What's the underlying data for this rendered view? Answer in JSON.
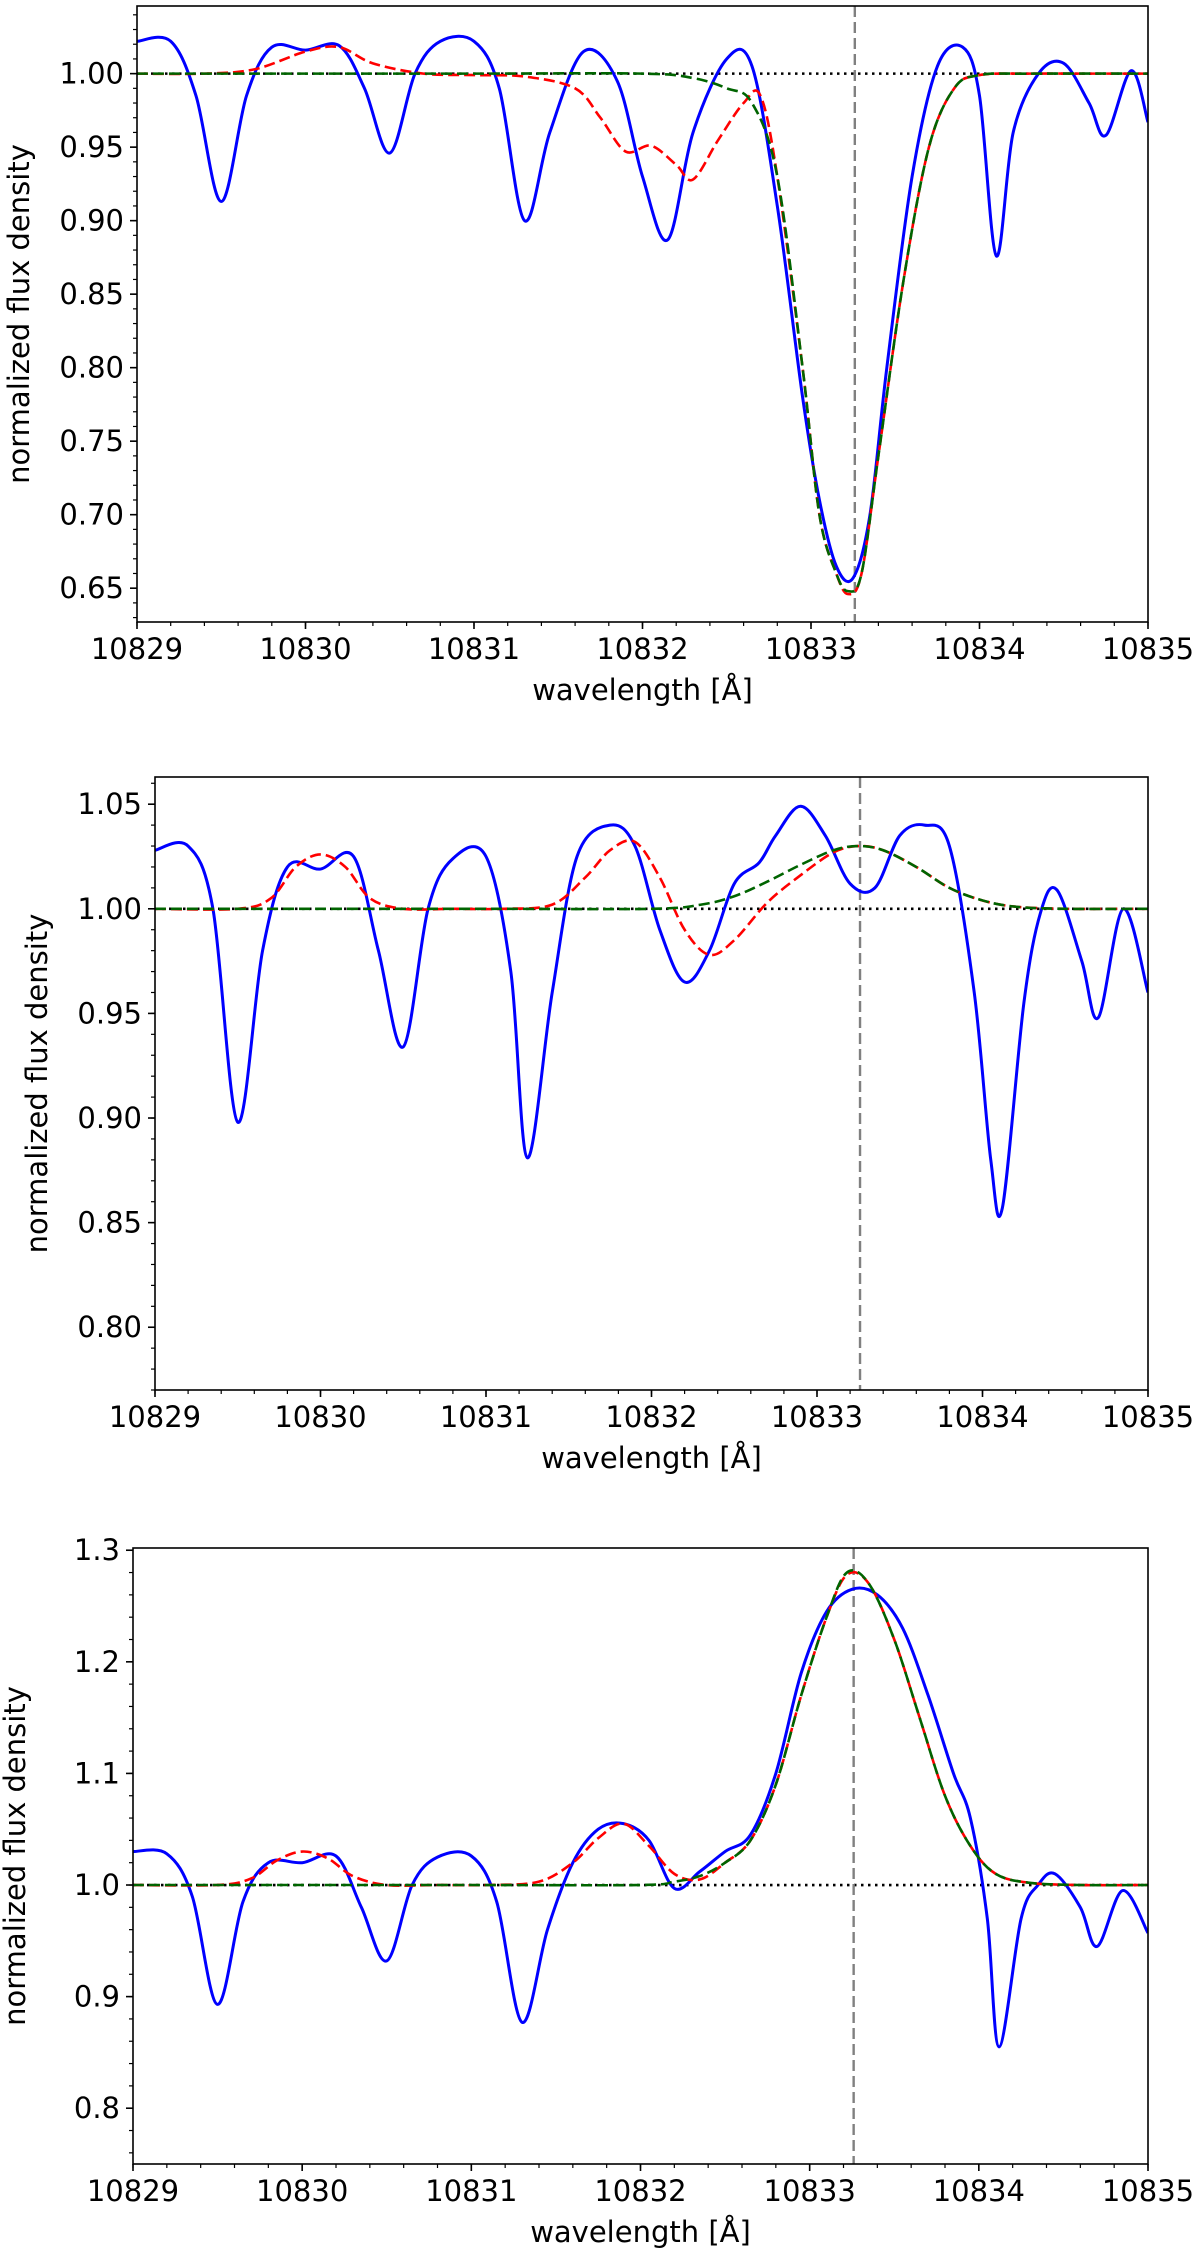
{
  "chart_data": [
    {
      "type": "line",
      "xlabel": "wavelength [Å]",
      "ylabel": "normalized flux density",
      "xlim": [
        10829,
        10835
      ],
      "ylim": [
        0.627,
        1.046
      ],
      "xticks": [
        10829,
        10830,
        10831,
        10832,
        10833,
        10834,
        10835
      ],
      "xtick_labels": [
        "10829",
        "10830",
        "10831",
        "10832",
        "10833",
        "10834",
        "10835"
      ],
      "yticks": [
        0.65,
        0.7,
        0.75,
        0.8,
        0.85,
        0.9,
        0.95,
        1.0
      ],
      "ytick_labels": [
        "0.65",
        "0.70",
        "0.75",
        "0.80",
        "0.85",
        "0.90",
        "0.95",
        "1.00"
      ],
      "grid": false,
      "reference_lines": {
        "horizontal_dotted_y": 1.0,
        "vertical_dashed_x": 10833.26
      },
      "series": [
        {
          "color": "#0000ff",
          "style": "solid",
          "x": [
            10829.0,
            10829.2,
            10829.35,
            10829.5,
            10829.65,
            10829.8,
            10830.0,
            10830.2,
            10830.35,
            10830.5,
            10830.65,
            10830.8,
            10831.0,
            10831.15,
            10831.3,
            10831.45,
            10831.65,
            10831.85,
            10832.0,
            10832.15,
            10832.3,
            10832.5,
            10832.65,
            10832.8,
            10832.95,
            10833.05,
            10833.15,
            10833.25,
            10833.35,
            10833.45,
            10833.6,
            10833.75,
            10833.9,
            10834.0,
            10834.1,
            10834.2,
            10834.35,
            10834.5,
            10834.65,
            10834.75,
            10834.9,
            10835.0
          ],
          "y": [
            1.022,
            1.022,
            0.985,
            0.913,
            0.985,
            1.018,
            1.016,
            1.019,
            0.99,
            0.946,
            1.0,
            1.022,
            1.022,
            0.99,
            0.9,
            0.96,
            1.015,
            0.995,
            0.93,
            0.887,
            0.96,
            1.01,
            1.005,
            0.91,
            0.78,
            0.71,
            0.665,
            0.657,
            0.7,
            0.8,
            0.93,
            1.005,
            1.018,
            0.985,
            0.876,
            0.96,
            1.0,
            1.007,
            0.98,
            0.958,
            1.002,
            0.967
          ]
        },
        {
          "color": "#ff0000",
          "style": "dashed",
          "x": [
            10829.0,
            10829.4,
            10829.7,
            10830.0,
            10830.2,
            10830.4,
            10830.7,
            10831.0,
            10831.3,
            10831.6,
            10831.75,
            10831.9,
            10832.05,
            10832.2,
            10832.3,
            10832.45,
            10832.6,
            10832.7,
            10832.8,
            10832.95,
            10833.05,
            10833.15,
            10833.22,
            10833.3,
            10833.4,
            10833.55,
            10833.7,
            10833.85,
            10834.0,
            10834.3,
            10834.6,
            10835.0
          ],
          "y": [
            1.0,
            1.0,
            1.003,
            1.015,
            1.018,
            1.007,
            1.0,
            0.999,
            0.998,
            0.99,
            0.97,
            0.947,
            0.951,
            0.938,
            0.928,
            0.955,
            0.98,
            0.985,
            0.93,
            0.8,
            0.7,
            0.66,
            0.646,
            0.66,
            0.74,
            0.86,
            0.95,
            0.99,
            0.999,
            1.0,
            1.0,
            1.0
          ]
        },
        {
          "color": "#006400",
          "style": "dashed",
          "x": [
            10829.0,
            10830.0,
            10831.0,
            10832.0,
            10832.3,
            10832.5,
            10832.65,
            10832.8,
            10832.95,
            10833.05,
            10833.15,
            10833.22,
            10833.3,
            10833.4,
            10833.55,
            10833.7,
            10833.85,
            10834.0,
            10834.3,
            10835.0
          ],
          "y": [
            1.0,
            1.0,
            1.0,
            1.0,
            0.997,
            0.99,
            0.98,
            0.93,
            0.8,
            0.7,
            0.66,
            0.648,
            0.66,
            0.74,
            0.86,
            0.95,
            0.99,
            0.999,
            1.0,
            1.0
          ]
        }
      ]
    },
    {
      "type": "line",
      "xlabel": "wavelength [Å]",
      "ylabel": "normalized flux density",
      "xlim": [
        10829,
        10835
      ],
      "ylim": [
        0.77,
        1.063
      ],
      "xticks": [
        10829,
        10830,
        10831,
        10832,
        10833,
        10834,
        10835
      ],
      "xtick_labels": [
        "10829",
        "10830",
        "10831",
        "10832",
        "10833",
        "10834",
        "10835"
      ],
      "yticks": [
        0.8,
        0.85,
        0.9,
        0.95,
        1.0,
        1.05
      ],
      "ytick_labels": [
        "0.80",
        "0.85",
        "0.90",
        "0.95",
        "1.00",
        "1.05"
      ],
      "grid": false,
      "reference_lines": {
        "horizontal_dotted_y": 1.0,
        "vertical_dashed_x": 10833.26
      },
      "series": [
        {
          "color": "#0000ff",
          "style": "solid",
          "x": [
            10829.0,
            10829.2,
            10829.35,
            10829.5,
            10829.65,
            10829.8,
            10830.0,
            10830.2,
            10830.35,
            10830.5,
            10830.65,
            10830.8,
            10831.0,
            10831.15,
            10831.25,
            10831.4,
            10831.55,
            10831.75,
            10831.9,
            10832.05,
            10832.2,
            10832.35,
            10832.5,
            10832.65,
            10832.75,
            10832.9,
            10833.05,
            10833.2,
            10833.35,
            10833.5,
            10833.65,
            10833.8,
            10833.95,
            10834.05,
            10834.12,
            10834.25,
            10834.35,
            10834.45,
            10834.6,
            10834.7,
            10834.85,
            10835.0
          ],
          "y": [
            1.028,
            1.03,
            1.0,
            0.898,
            0.98,
            1.02,
            1.019,
            1.025,
            0.98,
            0.934,
            1.0,
            1.024,
            1.025,
            0.97,
            0.881,
            0.96,
            1.025,
            1.04,
            1.03,
            0.99,
            0.965,
            0.98,
            1.012,
            1.022,
            1.035,
            1.049,
            1.035,
            1.012,
            1.01,
            1.035,
            1.04,
            1.03,
            0.96,
            0.88,
            0.857,
            0.955,
            0.998,
            1.009,
            0.975,
            0.948,
            1.0,
            0.96
          ]
        },
        {
          "color": "#ff0000",
          "style": "dashed",
          "x": [
            10829.0,
            10829.5,
            10829.7,
            10829.85,
            10830.0,
            10830.15,
            10830.3,
            10830.5,
            10830.8,
            10831.1,
            10831.4,
            10831.6,
            10831.75,
            10831.9,
            10832.05,
            10832.2,
            10832.35,
            10832.5,
            10832.7,
            10832.9,
            10833.1,
            10833.25,
            10833.4,
            10833.6,
            10833.8,
            10834.0,
            10834.2,
            10834.5,
            10834.8,
            10835.0
          ],
          "y": [
            1.0,
            1.0,
            1.005,
            1.02,
            1.026,
            1.02,
            1.005,
            1.0,
            1.0,
            1.0,
            1.002,
            1.015,
            1.028,
            1.032,
            1.015,
            0.99,
            0.978,
            0.985,
            1.003,
            1.016,
            1.027,
            1.03,
            1.028,
            1.02,
            1.01,
            1.004,
            1.001,
            1.0,
            1.0,
            1.0
          ]
        },
        {
          "color": "#006400",
          "style": "dashed",
          "x": [
            10829.0,
            10830.0,
            10831.0,
            10832.0,
            10832.3,
            10832.5,
            10832.7,
            10832.9,
            10833.1,
            10833.25,
            10833.4,
            10833.6,
            10833.8,
            10834.0,
            10834.2,
            10834.5,
            10835.0
          ],
          "y": [
            1.0,
            1.0,
            1.0,
            1.0,
            1.002,
            1.006,
            1.013,
            1.021,
            1.028,
            1.03,
            1.028,
            1.02,
            1.01,
            1.004,
            1.001,
            1.0,
            1.0
          ]
        }
      ]
    },
    {
      "type": "line",
      "xlabel": "wavelength [Å]",
      "ylabel": "normalized flux density",
      "xlim": [
        10829,
        10835
      ],
      "ylim": [
        0.75,
        1.302
      ],
      "xticks": [
        10829,
        10830,
        10831,
        10832,
        10833,
        10834,
        10835
      ],
      "xtick_labels": [
        "10829",
        "10830",
        "10831",
        "10832",
        "10833",
        "10834",
        "10835"
      ],
      "yticks": [
        0.8,
        0.9,
        1.0,
        1.1,
        1.2,
        1.3
      ],
      "ytick_labels": [
        "0.8",
        "0.9",
        "1.0",
        "1.1",
        "1.2",
        "1.3"
      ],
      "grid": false,
      "reference_lines": {
        "horizontal_dotted_y": 1.0,
        "vertical_dashed_x": 10833.26
      },
      "series": [
        {
          "color": "#0000ff",
          "style": "solid",
          "x": [
            10829.0,
            10829.2,
            10829.35,
            10829.5,
            10829.65,
            10829.8,
            10830.0,
            10830.2,
            10830.35,
            10830.5,
            10830.65,
            10830.8,
            10831.0,
            10831.15,
            10831.3,
            10831.45,
            10831.6,
            10831.75,
            10831.9,
            10832.05,
            10832.2,
            10832.35,
            10832.5,
            10832.65,
            10832.8,
            10832.95,
            10833.1,
            10833.25,
            10833.4,
            10833.55,
            10833.7,
            10833.85,
            10833.95,
            10834.05,
            10834.12,
            10834.25,
            10834.35,
            10834.45,
            10834.6,
            10834.7,
            10834.85,
            10835.0
          ],
          "y": [
            1.03,
            1.028,
            0.99,
            0.893,
            0.985,
            1.02,
            1.02,
            1.026,
            0.98,
            0.932,
            1.0,
            1.025,
            1.026,
            0.985,
            0.877,
            0.96,
            1.02,
            1.05,
            1.055,
            1.04,
            0.997,
            1.012,
            1.03,
            1.045,
            1.1,
            1.19,
            1.245,
            1.265,
            1.26,
            1.23,
            1.17,
            1.1,
            1.06,
            0.97,
            0.855,
            0.97,
            1.0,
            1.01,
            0.98,
            0.945,
            0.995,
            0.957
          ]
        },
        {
          "color": "#ff0000",
          "style": "dashed",
          "x": [
            10829.0,
            10829.5,
            10829.7,
            10829.85,
            10830.0,
            10830.15,
            10830.3,
            10830.5,
            10830.8,
            10831.1,
            10831.4,
            10831.6,
            10831.75,
            10831.9,
            10832.05,
            10832.2,
            10832.35,
            10832.5,
            10832.65,
            10832.8,
            10832.95,
            10833.1,
            10833.22,
            10833.35,
            10833.5,
            10833.65,
            10833.8,
            10833.95,
            10834.1,
            10834.3,
            10834.6,
            10835.0
          ],
          "y": [
            1.0,
            1.0,
            1.006,
            1.022,
            1.03,
            1.024,
            1.008,
            1.0,
            1.0,
            1.0,
            1.003,
            1.02,
            1.042,
            1.055,
            1.035,
            1.01,
            1.005,
            1.02,
            1.04,
            1.09,
            1.17,
            1.24,
            1.278,
            1.27,
            1.22,
            1.15,
            1.08,
            1.035,
            1.01,
            1.002,
            1.0,
            1.0
          ]
        },
        {
          "color": "#006400",
          "style": "dashed",
          "x": [
            10829.0,
            10830.0,
            10831.0,
            10832.0,
            10832.2,
            10832.35,
            10832.5,
            10832.65,
            10832.8,
            10832.95,
            10833.1,
            10833.22,
            10833.35,
            10833.5,
            10833.65,
            10833.8,
            10833.95,
            10834.1,
            10834.3,
            10834.6,
            10835.0
          ],
          "y": [
            1.0,
            1.0,
            1.0,
            1.0,
            1.003,
            1.008,
            1.02,
            1.04,
            1.09,
            1.17,
            1.24,
            1.28,
            1.27,
            1.22,
            1.15,
            1.08,
            1.035,
            1.01,
            1.002,
            1.0,
            1.0
          ]
        }
      ]
    }
  ]
}
